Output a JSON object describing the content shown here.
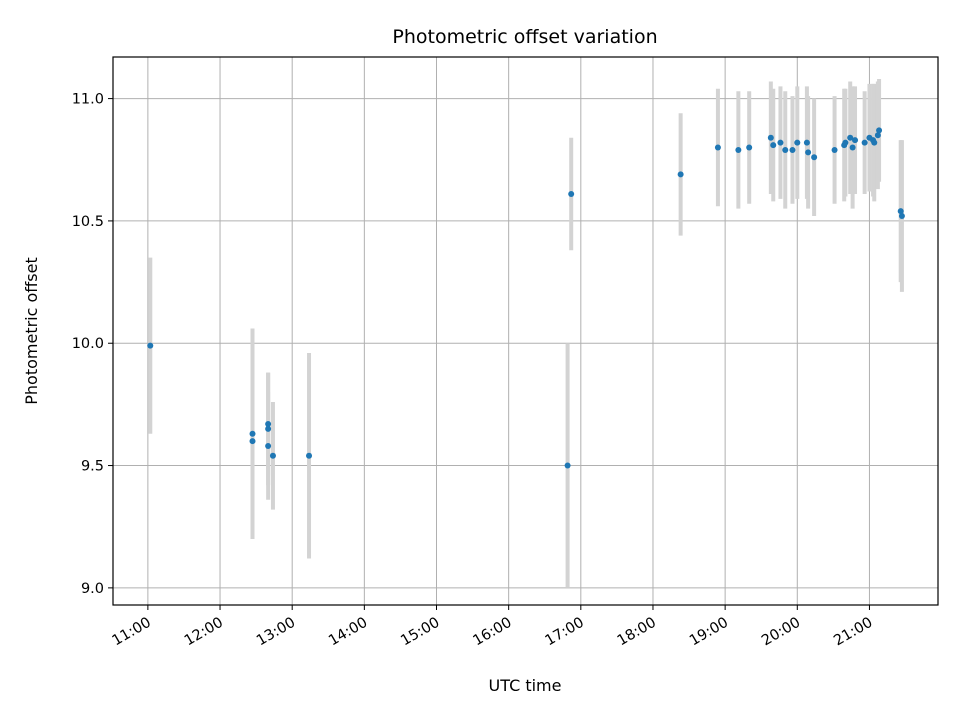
{
  "chart_data": {
    "type": "scatter",
    "title": "Photometric offset variation",
    "xlabel": "UTC time",
    "ylabel": "Photometric offset",
    "grid": true,
    "x_ticks": [
      "11:00",
      "12:00",
      "13:00",
      "14:00",
      "15:00",
      "16:00",
      "17:00",
      "18:00",
      "19:00",
      "20:00",
      "21:00"
    ],
    "y_ticks": [
      "9.0",
      "9.5",
      "10.0",
      "10.5",
      "11.0"
    ],
    "ylim": [
      8.93,
      11.17
    ],
    "xlim": [
      "10:31",
      "21:57"
    ],
    "point_color": "#1f77b4",
    "errorbar_color": "#d3d3d3",
    "points": [
      {
        "t": "11:02",
        "y": 9.99,
        "err": 0.36
      },
      {
        "t": "12:27",
        "y": 9.63,
        "err": 0.43
      },
      {
        "t": "12:27",
        "y": 9.6,
        "err": 0.38
      },
      {
        "t": "12:40",
        "y": 9.67,
        "err": 0.21
      },
      {
        "t": "12:40",
        "y": 9.65,
        "err": 0.23
      },
      {
        "t": "12:40",
        "y": 9.58,
        "err": 0.22
      },
      {
        "t": "12:44",
        "y": 9.54,
        "err": 0.22
      },
      {
        "t": "13:14",
        "y": 9.54,
        "err": 0.42
      },
      {
        "t": "16:49",
        "y": 9.5,
        "err": 0.5
      },
      {
        "t": "16:52",
        "y": 10.61,
        "err": 0.23
      },
      {
        "t": "18:23",
        "y": 10.69,
        "err": 0.25
      },
      {
        "t": "18:54",
        "y": 10.8,
        "err": 0.24
      },
      {
        "t": "19:11",
        "y": 10.79,
        "err": 0.24
      },
      {
        "t": "19:20",
        "y": 10.8,
        "err": 0.23
      },
      {
        "t": "19:38",
        "y": 10.84,
        "err": 0.23
      },
      {
        "t": "19:40",
        "y": 10.81,
        "err": 0.23
      },
      {
        "t": "19:46",
        "y": 10.82,
        "err": 0.23
      },
      {
        "t": "19:50",
        "y": 10.79,
        "err": 0.24
      },
      {
        "t": "19:56",
        "y": 10.79,
        "err": 0.22
      },
      {
        "t": "20:00",
        "y": 10.82,
        "err": 0.23
      },
      {
        "t": "20:08",
        "y": 10.82,
        "err": 0.23
      },
      {
        "t": "20:09",
        "y": 10.78,
        "err": 0.23
      },
      {
        "t": "20:14",
        "y": 10.76,
        "err": 0.24
      },
      {
        "t": "20:31",
        "y": 10.79,
        "err": 0.22
      },
      {
        "t": "20:39",
        "y": 10.81,
        "err": 0.23
      },
      {
        "t": "20:40",
        "y": 10.82,
        "err": 0.22
      },
      {
        "t": "20:44",
        "y": 10.84,
        "err": 0.23
      },
      {
        "t": "20:46",
        "y": 10.8,
        "err": 0.25
      },
      {
        "t": "20:48",
        "y": 10.83,
        "err": 0.22
      },
      {
        "t": "20:56",
        "y": 10.82,
        "err": 0.21
      },
      {
        "t": "21:00",
        "y": 10.84,
        "err": 0.22
      },
      {
        "t": "21:03",
        "y": 10.83,
        "err": 0.23
      },
      {
        "t": "21:04",
        "y": 10.82,
        "err": 0.24
      },
      {
        "t": "21:07",
        "y": 10.85,
        "err": 0.22
      },
      {
        "t": "21:08",
        "y": 10.87,
        "err": 0.21
      },
      {
        "t": "21:26",
        "y": 10.54,
        "err": 0.29
      },
      {
        "t": "21:27",
        "y": 10.52,
        "err": 0.31
      }
    ]
  }
}
